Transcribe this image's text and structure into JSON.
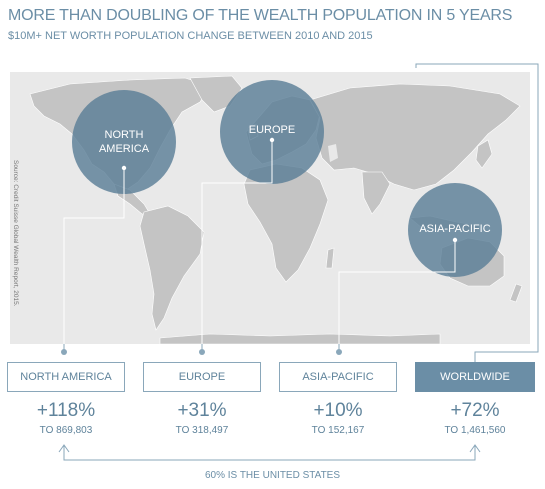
{
  "header": {
    "title": "MORE THAN DOUBLING OF THE WEALTH POPULATION IN 5 YEARS",
    "subtitle": "$10M+ NET WORTH POPULATION CHANGE BETWEEN 2010 AND 2015"
  },
  "source": "Source: Credit Suisse Global Wealth Report, 2015.",
  "regions": [
    {
      "label_lines": [
        "NORTH",
        "AMERICA"
      ],
      "box_label": "NORTH AMERICA",
      "change": "+118%",
      "total": "TO 869,803"
    },
    {
      "label_lines": [
        "EUROPE"
      ],
      "box_label": "EUROPE",
      "change": "+31%",
      "total": "TO 318,497"
    },
    {
      "label_lines": [
        "ASIA-PACIFIC"
      ],
      "box_label": "ASIA-PACIFIC",
      "change": "+10%",
      "total": "TO 152,167"
    }
  ],
  "worldwide": {
    "box_label": "WORLDWIDE",
    "change": "+72%",
    "total": "TO 1,461,560"
  },
  "footnote": "60% IS THE UNITED STATES",
  "colors": {
    "accent": "#6b8ea6",
    "circle": "#5c7f97",
    "land": "#c4c4c4",
    "ocean": "#e9e9e9"
  }
}
